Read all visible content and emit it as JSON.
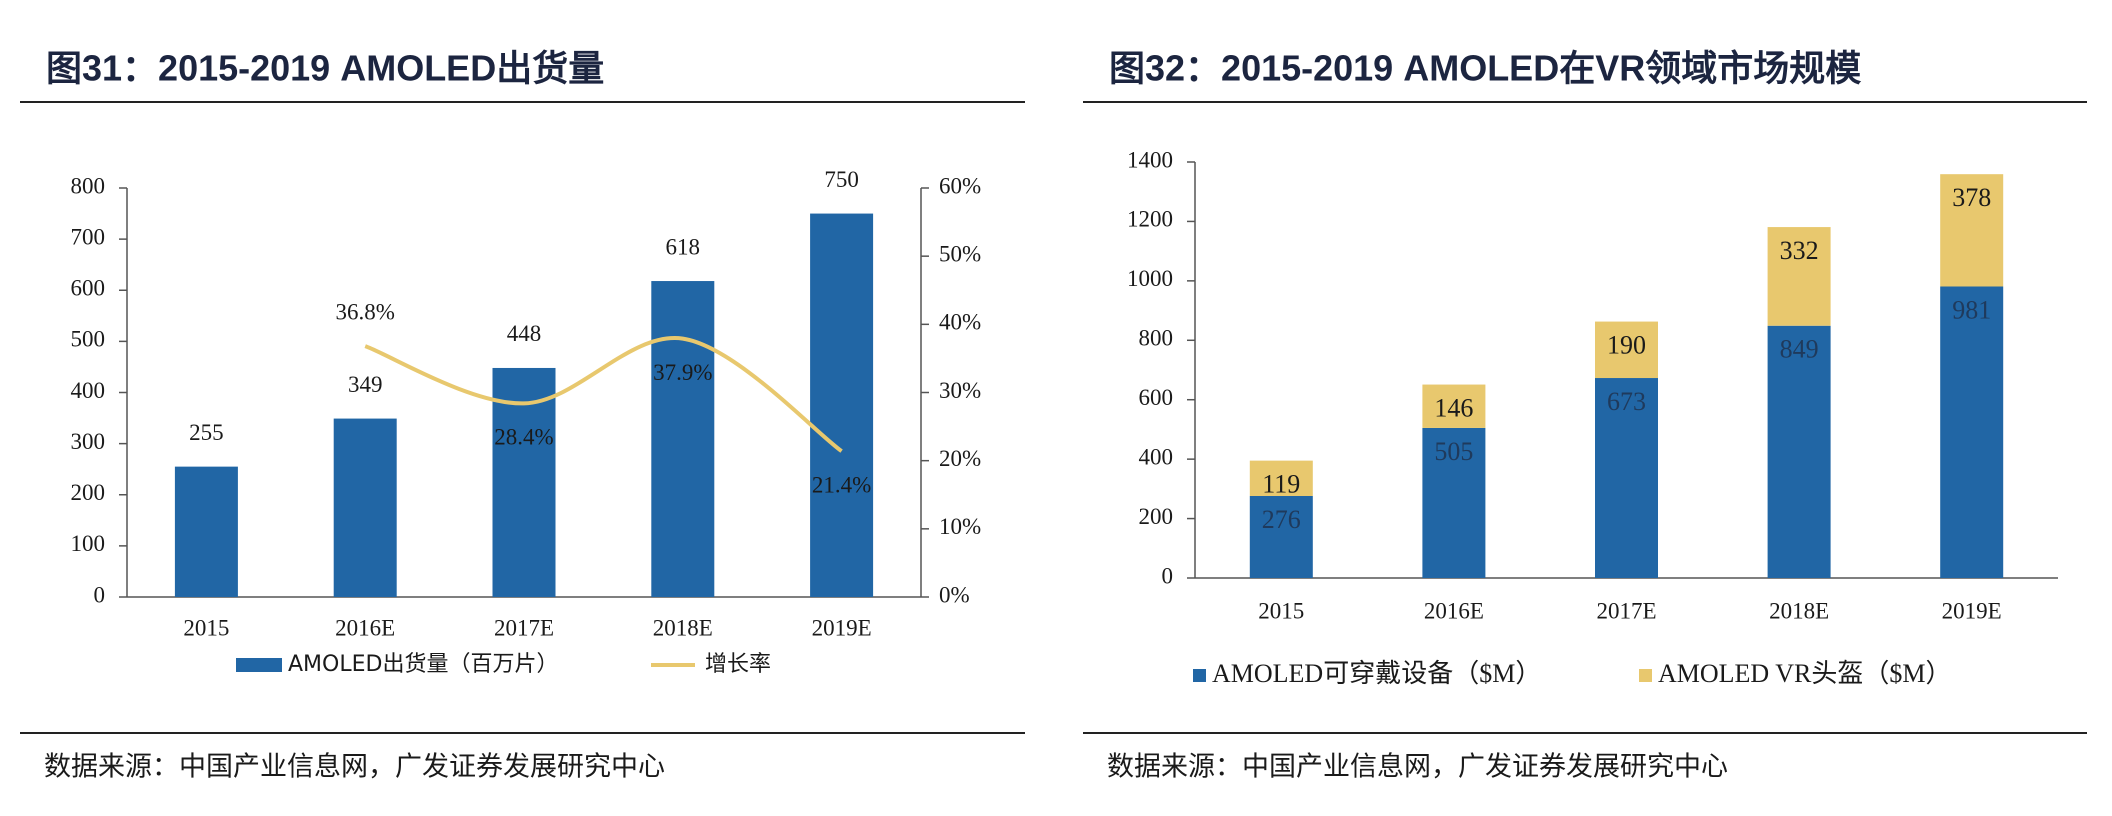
{
  "chart_data": [
    {
      "type": "combo",
      "title": "图31：2015-2019 AMOLED出货量",
      "source": "数据来源：中国产业信息网，广发证券发展研究中心",
      "categories": [
        "2015",
        "2016E",
        "2017E",
        "2018E",
        "2019E"
      ],
      "series": [
        {
          "name": "AMOLED出货量（百万片）",
          "color": "#2166a5",
          "values": [
            255,
            349,
            448,
            618,
            750
          ]
        },
        {
          "name": "增长率",
          "color": "#e8c86e",
          "axis": "y2",
          "values": [
            null,
            36.8,
            28.4,
            37.9,
            21.4
          ],
          "value_labels": [
            null,
            "36.8%",
            "28.4%",
            "37.9%",
            "21.4%"
          ]
        }
      ],
      "ylim": [
        0,
        800
      ],
      "yticks": [
        0,
        100,
        200,
        300,
        400,
        500,
        600,
        700,
        800
      ],
      "y2lim": [
        0,
        60
      ],
      "y2ticks": [
        {
          "value": 0,
          "label": "0%"
        },
        {
          "value": 10,
          "label": "10%"
        },
        {
          "value": 20,
          "label": "20%"
        },
        {
          "value": 30,
          "label": "30%"
        },
        {
          "value": 40,
          "label": "40%"
        },
        {
          "value": 50,
          "label": "50%"
        },
        {
          "value": 60,
          "label": "60%"
        }
      ]
    },
    {
      "type": "stacked_bar",
      "title": "图32：2015-2019 AMOLED在VR领域市场规模",
      "source": "数据来源：中国产业信息网，广发证券发展研究中心",
      "categories": [
        "2015",
        "2016E",
        "2017E",
        "2018E",
        "2019E"
      ],
      "series": [
        {
          "name": "AMOLED可穿戴设备（$M）",
          "color": "#2166a5",
          "values": [
            276,
            505,
            673,
            849,
            981
          ]
        },
        {
          "name": "AMOLED VR头盔（$M）",
          "color": "#e8c86e",
          "values": [
            119,
            146,
            190,
            332,
            378
          ]
        }
      ],
      "ylim": [
        0,
        1400
      ],
      "yticks": [
        0,
        200,
        400,
        600,
        800,
        1000,
        1200,
        1400
      ]
    }
  ]
}
